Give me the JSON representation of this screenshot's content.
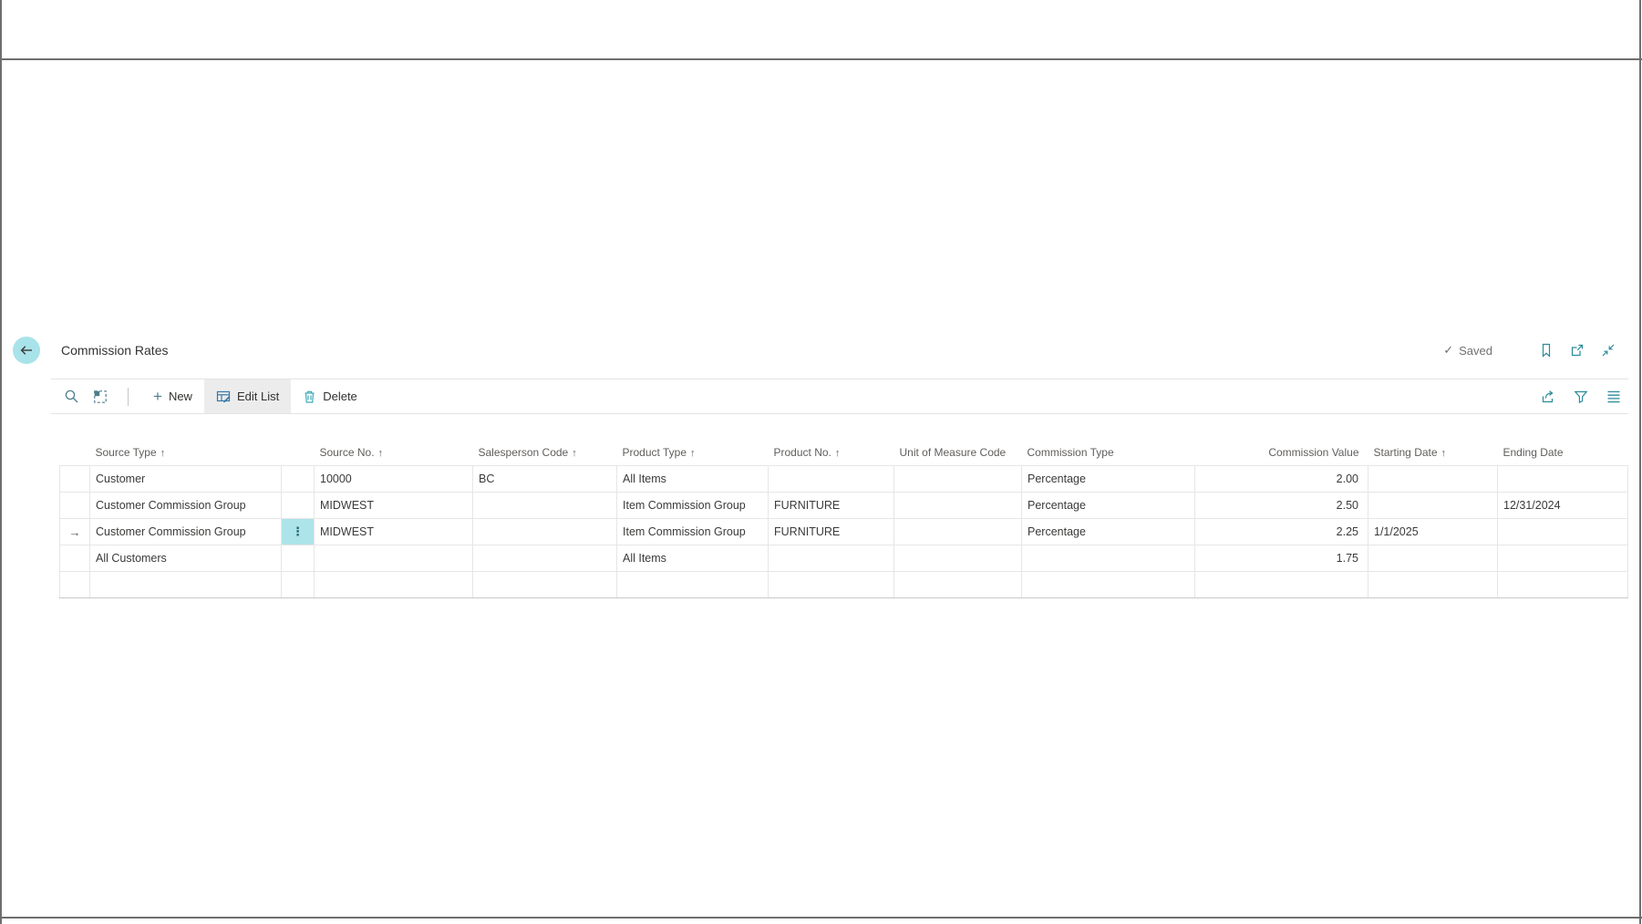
{
  "colors": {
    "accent_teal": "#2a8a9a",
    "toolbar_icon": "#4f7d8c",
    "edit_list_icon_blue": "#3878a8",
    "delete_icon_teal": "#3fa9ba",
    "back_button_bg": "#a9e3ea",
    "ellipsis_cell_bg": "#ace4ea",
    "edit_list_selected_bg": "#ececec",
    "grid_line": "#e7e6e5"
  },
  "header": {
    "title": "Commission Rates",
    "saved_label": "Saved",
    "check_glyph": "✓"
  },
  "toolbar": {
    "new_label": "New",
    "plus_glyph": "+",
    "edit_list_label": "Edit List",
    "delete_label": "Delete"
  },
  "table": {
    "sort_arrow_glyph": "↑",
    "active_row_arrow": "→",
    "row_options_glyph": "⋮",
    "columns": [
      {
        "key": "source_type",
        "label": "Source Type",
        "sorted": true,
        "align": "left"
      },
      {
        "key": "source_no",
        "label": "Source No.",
        "sorted": true,
        "align": "left"
      },
      {
        "key": "salesperson_code",
        "label": "Salesperson Code",
        "sorted": true,
        "align": "left"
      },
      {
        "key": "product_type",
        "label": "Product Type",
        "sorted": true,
        "align": "left"
      },
      {
        "key": "product_no",
        "label": "Product No.",
        "sorted": true,
        "align": "left"
      },
      {
        "key": "unit_of_measure_code",
        "label": "Unit of Measure Code",
        "sorted": false,
        "align": "left"
      },
      {
        "key": "commission_type",
        "label": "Commission Type",
        "sorted": false,
        "align": "left"
      },
      {
        "key": "commission_value",
        "label": "Commission Value",
        "sorted": false,
        "align": "right"
      },
      {
        "key": "starting_date",
        "label": "Starting Date",
        "sorted": true,
        "align": "left"
      },
      {
        "key": "ending_date",
        "label": "Ending Date",
        "sorted": false,
        "align": "left"
      }
    ],
    "rows": [
      {
        "active": false,
        "cells": {
          "source_type": "Customer",
          "source_no": "10000",
          "salesperson_code": "BC",
          "product_type": "All Items",
          "product_no": "",
          "unit_of_measure_code": "",
          "commission_type": "Percentage",
          "commission_value": "2.00",
          "starting_date": "",
          "ending_date": ""
        }
      },
      {
        "active": false,
        "cells": {
          "source_type": "Customer Commission Group",
          "source_no": "MIDWEST",
          "salesperson_code": "",
          "product_type": "Item Commission Group",
          "product_no": "FURNITURE",
          "unit_of_measure_code": "",
          "commission_type": "Percentage",
          "commission_value": "2.50",
          "starting_date": "",
          "ending_date": "12/31/2024"
        }
      },
      {
        "active": true,
        "cells": {
          "source_type": "Customer Commission Group",
          "source_no": "MIDWEST",
          "salesperson_code": "",
          "product_type": "Item Commission Group",
          "product_no": "FURNITURE",
          "unit_of_measure_code": "",
          "commission_type": "Percentage",
          "commission_value": "2.25",
          "starting_date": "1/1/2025",
          "ending_date": ""
        }
      },
      {
        "active": false,
        "cells": {
          "source_type": "All Customers",
          "source_no": "",
          "salesperson_code": "",
          "product_type": "All Items",
          "product_no": "",
          "unit_of_measure_code": "",
          "commission_type": "",
          "commission_value": "1.75",
          "starting_date": "",
          "ending_date": ""
        }
      },
      {
        "active": false,
        "cells": {
          "source_type": "",
          "source_no": "",
          "salesperson_code": "",
          "product_type": "",
          "product_no": "",
          "unit_of_measure_code": "",
          "commission_type": "",
          "commission_value": "",
          "starting_date": "",
          "ending_date": ""
        }
      }
    ]
  }
}
